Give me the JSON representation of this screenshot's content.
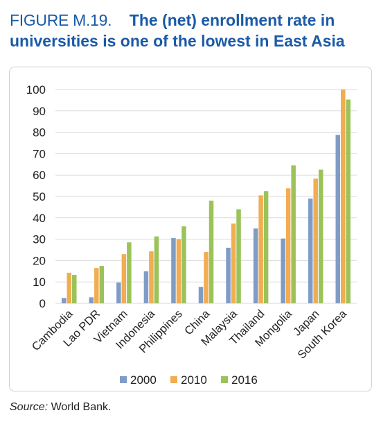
{
  "figure": {
    "label": "FIGURE M.19.",
    "title": "The (net) enrollment rate in universities is one of the lowest in East Asia"
  },
  "source": {
    "key": "Source:",
    "text": "World Bank."
  },
  "colors": {
    "title": "#1a5aa6",
    "s2000": "#7f9cc6",
    "s2010": "#f0ad52",
    "s2016": "#9bc35a",
    "grid": "#d9d9d9"
  },
  "chart_data": {
    "type": "bar",
    "categories": [
      "Cambodia",
      "Lao PDR",
      "Vietnam",
      "Indonesia",
      "Philippines",
      "China",
      "Malaysia",
      "Thailand",
      "Mongolia",
      "Japan",
      "South Korea"
    ],
    "series": [
      {
        "name": "2000",
        "values": [
          2.5,
          2.8,
          9.7,
          15,
          30.5,
          7.7,
          26,
          35,
          30.3,
          49,
          78.8
        ]
      },
      {
        "name": "2010",
        "values": [
          14.3,
          16.5,
          23,
          24.3,
          30,
          24,
          37.3,
          50.5,
          53.8,
          58.3,
          100
        ]
      },
      {
        "name": "2016",
        "values": [
          13.3,
          17.5,
          28.5,
          31.3,
          36,
          48,
          44,
          52.5,
          64.5,
          62.5,
          95.3
        ]
      }
    ],
    "yticks": [
      0,
      10,
      20,
      30,
      40,
      50,
      60,
      70,
      80,
      90,
      100
    ],
    "ylim": [
      0,
      100
    ],
    "grid": true,
    "legend": "bottom"
  }
}
